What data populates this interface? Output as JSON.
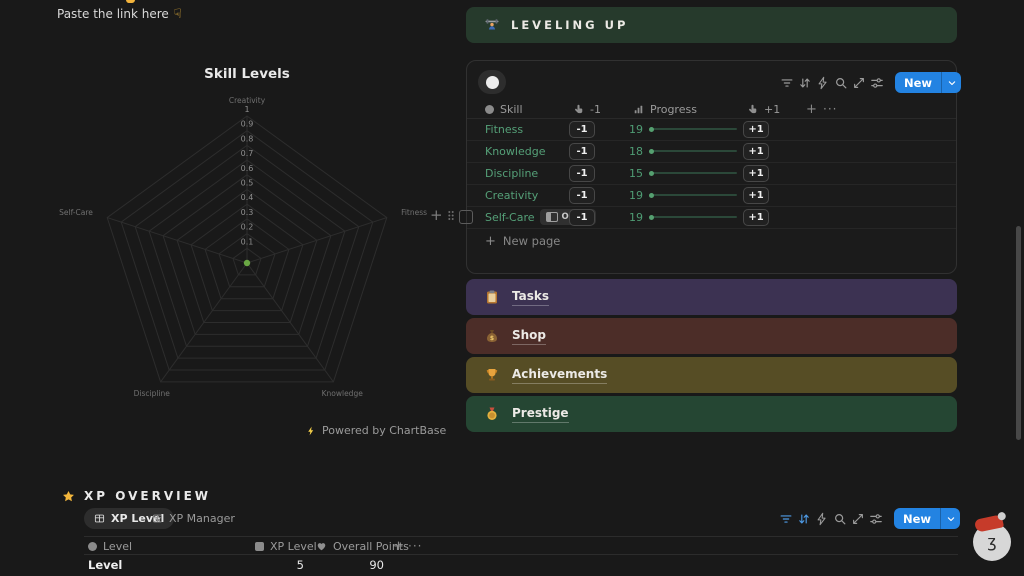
{
  "page": {
    "top_note": "Paste the link here"
  },
  "chart_card": {
    "title": "Skill Levels",
    "attribution": "Powered by ChartBase"
  },
  "chart_data": {
    "type": "radar",
    "title": "Skill Levels",
    "categories": [
      "Creativity",
      "Fitness",
      "Knowledge",
      "Discipline",
      "Self-Care"
    ],
    "values": [
      0,
      0,
      0,
      0,
      0
    ],
    "rlim": [
      0,
      1
    ],
    "ticks": [
      0.1,
      0.2,
      0.3,
      0.4,
      0.5,
      0.6,
      0.7,
      0.8,
      0.9,
      1
    ],
    "grid_shape": "pentagon",
    "grid_color": "#2d2d2d",
    "tick_label_color": "#8f8f8f",
    "axis_label_color": "#707070",
    "point_color": "#6aa844",
    "legend": false
  },
  "leveling": {
    "header": {
      "title": "LEVELING UP",
      "icon": "weightlifter-icon",
      "bg": "#263a2c"
    },
    "toolbar": {
      "new_label": "New",
      "accent": "#2383e2",
      "icons": [
        "filter",
        "sort",
        "automations",
        "search",
        "expand",
        "view-settings"
      ]
    },
    "table": {
      "columns": [
        {
          "icon": "title-circle-icon",
          "label": "Skill"
        },
        {
          "icon": "button-hand-icon",
          "label": "-1"
        },
        {
          "icon": "progress-bars-icon",
          "label": "Progress"
        },
        {
          "icon": "button-hand-icon",
          "label": "+1"
        }
      ],
      "rows": [
        {
          "skill": "Fitness",
          "minus": "-1",
          "progress": "19",
          "plus": "+1"
        },
        {
          "skill": "Knowledge",
          "minus": "-1",
          "progress": "18",
          "plus": "+1"
        },
        {
          "skill": "Discipline",
          "minus": "-1",
          "progress": "15",
          "plus": "+1"
        },
        {
          "skill": "Creativity",
          "minus": "-1",
          "progress": "19",
          "plus": "+1"
        },
        {
          "skill": "Self-Care",
          "minus": "-1",
          "progress": "19",
          "plus": "+1",
          "open_label": "OPEN"
        }
      ],
      "new_page_label": "New page"
    }
  },
  "banners": [
    {
      "label": "Tasks",
      "icon": "clipboard-icon",
      "bg": "#3c3252"
    },
    {
      "label": "Shop",
      "icon": "moneybag-icon",
      "bg": "#4c2d28"
    },
    {
      "label": "Achievements",
      "icon": "trophy-icon",
      "bg": "#564d25"
    },
    {
      "label": "Prestige",
      "icon": "medal-icon",
      "bg": "#254633"
    }
  ],
  "xp_overview": {
    "title": "XP OVERVIEW",
    "icon": "star-icon",
    "tabs": [
      {
        "label": "XP Level",
        "active": true
      },
      {
        "label": "XP Manager",
        "active": false
      }
    ],
    "toolbar": {
      "new_label": "New",
      "accent": "#2383e2"
    },
    "table": {
      "columns": [
        {
          "icon": "title-circle-icon",
          "label": "Level"
        },
        {
          "icon": "square-icon",
          "label": "XP Level"
        },
        {
          "icon": "heart-icon",
          "label": "Overall Points"
        }
      ],
      "rows": [
        {
          "level": "Level",
          "xp_level": "5",
          "overall_points": "90"
        }
      ]
    }
  }
}
